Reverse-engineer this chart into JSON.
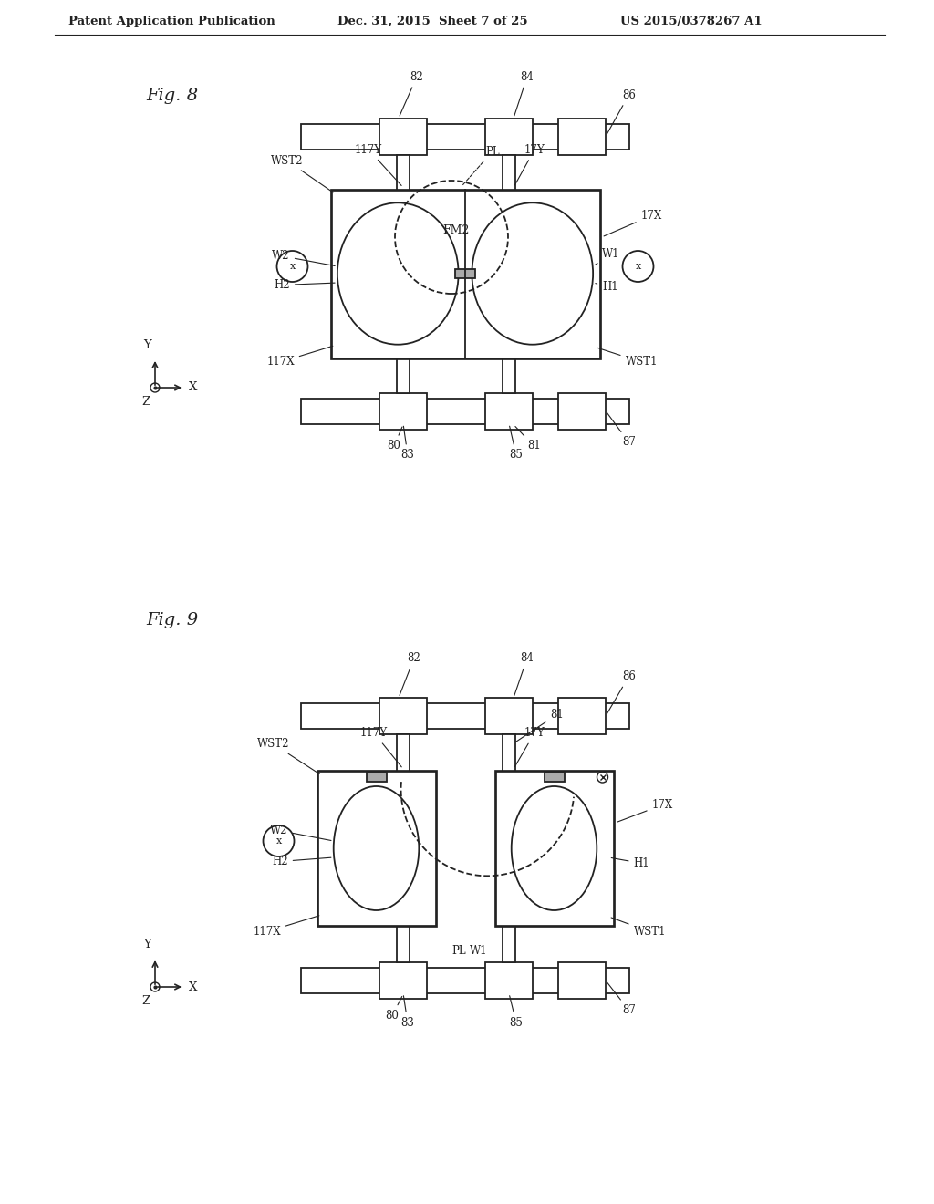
{
  "bg_color": "#ffffff",
  "line_color": "#222222",
  "header_left": "Patent Application Publication",
  "header_mid": "Dec. 31, 2015  Sheet 7 of 25",
  "header_right": "US 2015/0378267 A1"
}
